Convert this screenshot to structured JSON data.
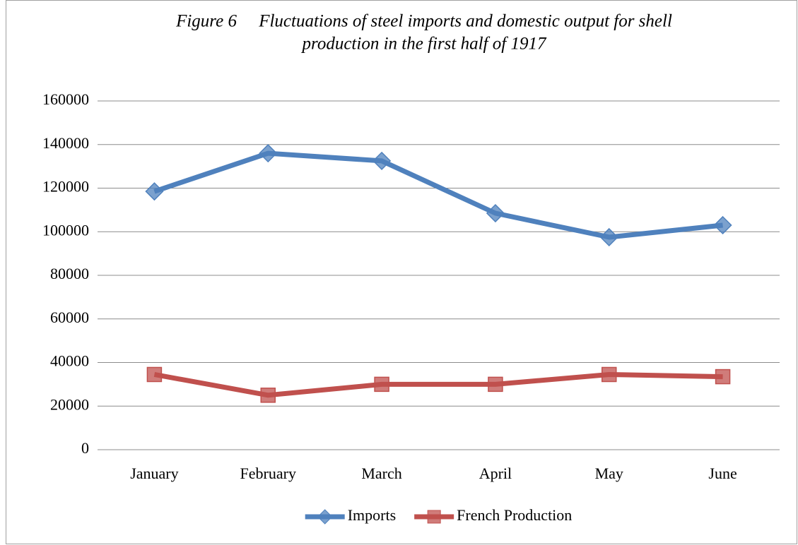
{
  "chart_data": {
    "type": "line",
    "title": [
      "Figure 6     Fluctuations of steel imports and domestic output for shell",
      "production in the first half of 1917"
    ],
    "categories": [
      "January",
      "February",
      "March",
      "April",
      "May",
      "June"
    ],
    "series": [
      {
        "name": "Imports",
        "color": "#4f81bd",
        "marker": "diamond",
        "values": [
          118500,
          136000,
          132500,
          108500,
          97500,
          103000
        ]
      },
      {
        "name": "French Production",
        "color": "#c0504d",
        "marker": "square",
        "values": [
          34500,
          25000,
          30000,
          30000,
          34500,
          33500
        ]
      }
    ],
    "ylim": [
      0,
      160000
    ],
    "yticks": [
      0,
      20000,
      40000,
      60000,
      80000,
      100000,
      120000,
      140000,
      160000
    ],
    "grid": true,
    "legend": "bottom"
  }
}
